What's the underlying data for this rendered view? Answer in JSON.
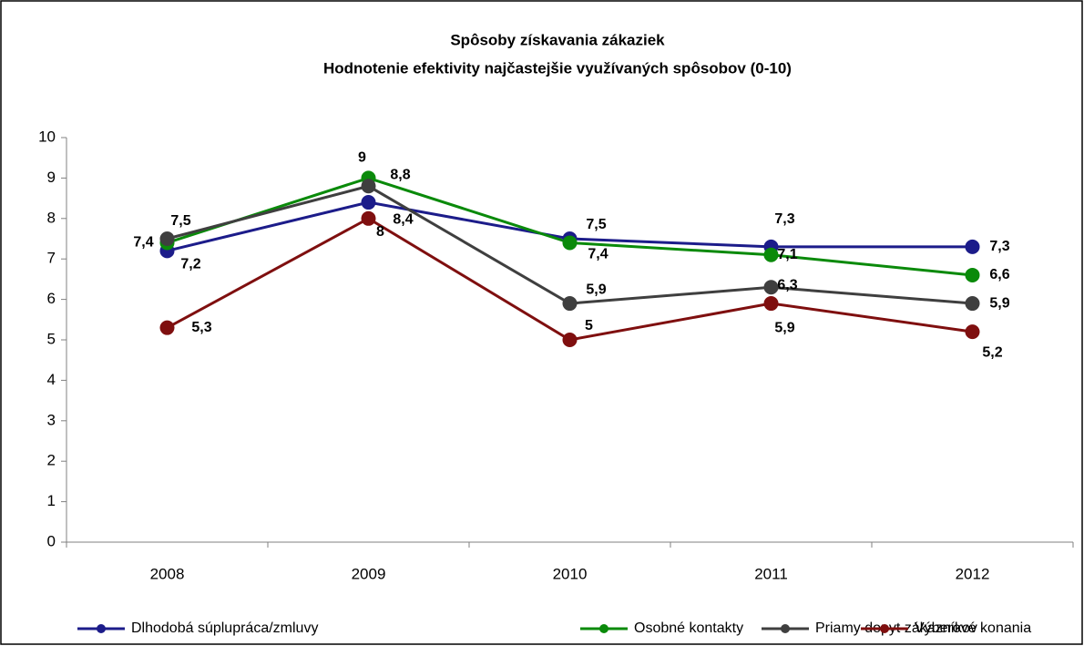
{
  "chart_data": {
    "type": "line",
    "title": "Spôsoby získavania zákaziek",
    "subtitle": "Hodnotenie efektivity najčastejšie využívaných spôsobov (0-10)",
    "categories": [
      "2008",
      "2009",
      "2010",
      "2011",
      "2012"
    ],
    "series": [
      {
        "name": "Dlhodobá súplupráca/zmluvy",
        "color": "#1c1c8a",
        "values": [
          7.2,
          8.4,
          7.5,
          7.3,
          7.3
        ],
        "value_labels": [
          "7,2",
          "8,4",
          "7,5",
          "7,3",
          "7,3"
        ]
      },
      {
        "name": "Osobné kontakty",
        "color": "#0a8a0a",
        "values": [
          7.4,
          9,
          7.4,
          7.1,
          6.6
        ],
        "value_labels": [
          "7,4",
          "9",
          "7,4",
          "7,1",
          "6,6"
        ]
      },
      {
        "name": "Priamy dopyt zákazníkov",
        "color": "#3f3f3f",
        "values": [
          7.5,
          8.8,
          5.9,
          6.3,
          5.9
        ],
        "value_labels": [
          "7,5",
          "8,8",
          "5,9",
          "6,3",
          "5,9"
        ]
      },
      {
        "name": "Výberové konania",
        "color": "#7f0f0f",
        "values": [
          5.3,
          8,
          5,
          5.9,
          5.2
        ],
        "value_labels": [
          "5,3",
          "8",
          "5",
          "5,9",
          "5,2"
        ]
      }
    ],
    "ylim": [
      0,
      10
    ],
    "yticks": [
      0,
      1,
      2,
      3,
      4,
      5,
      6,
      7,
      8,
      9,
      10
    ],
    "legend": "bottom"
  }
}
